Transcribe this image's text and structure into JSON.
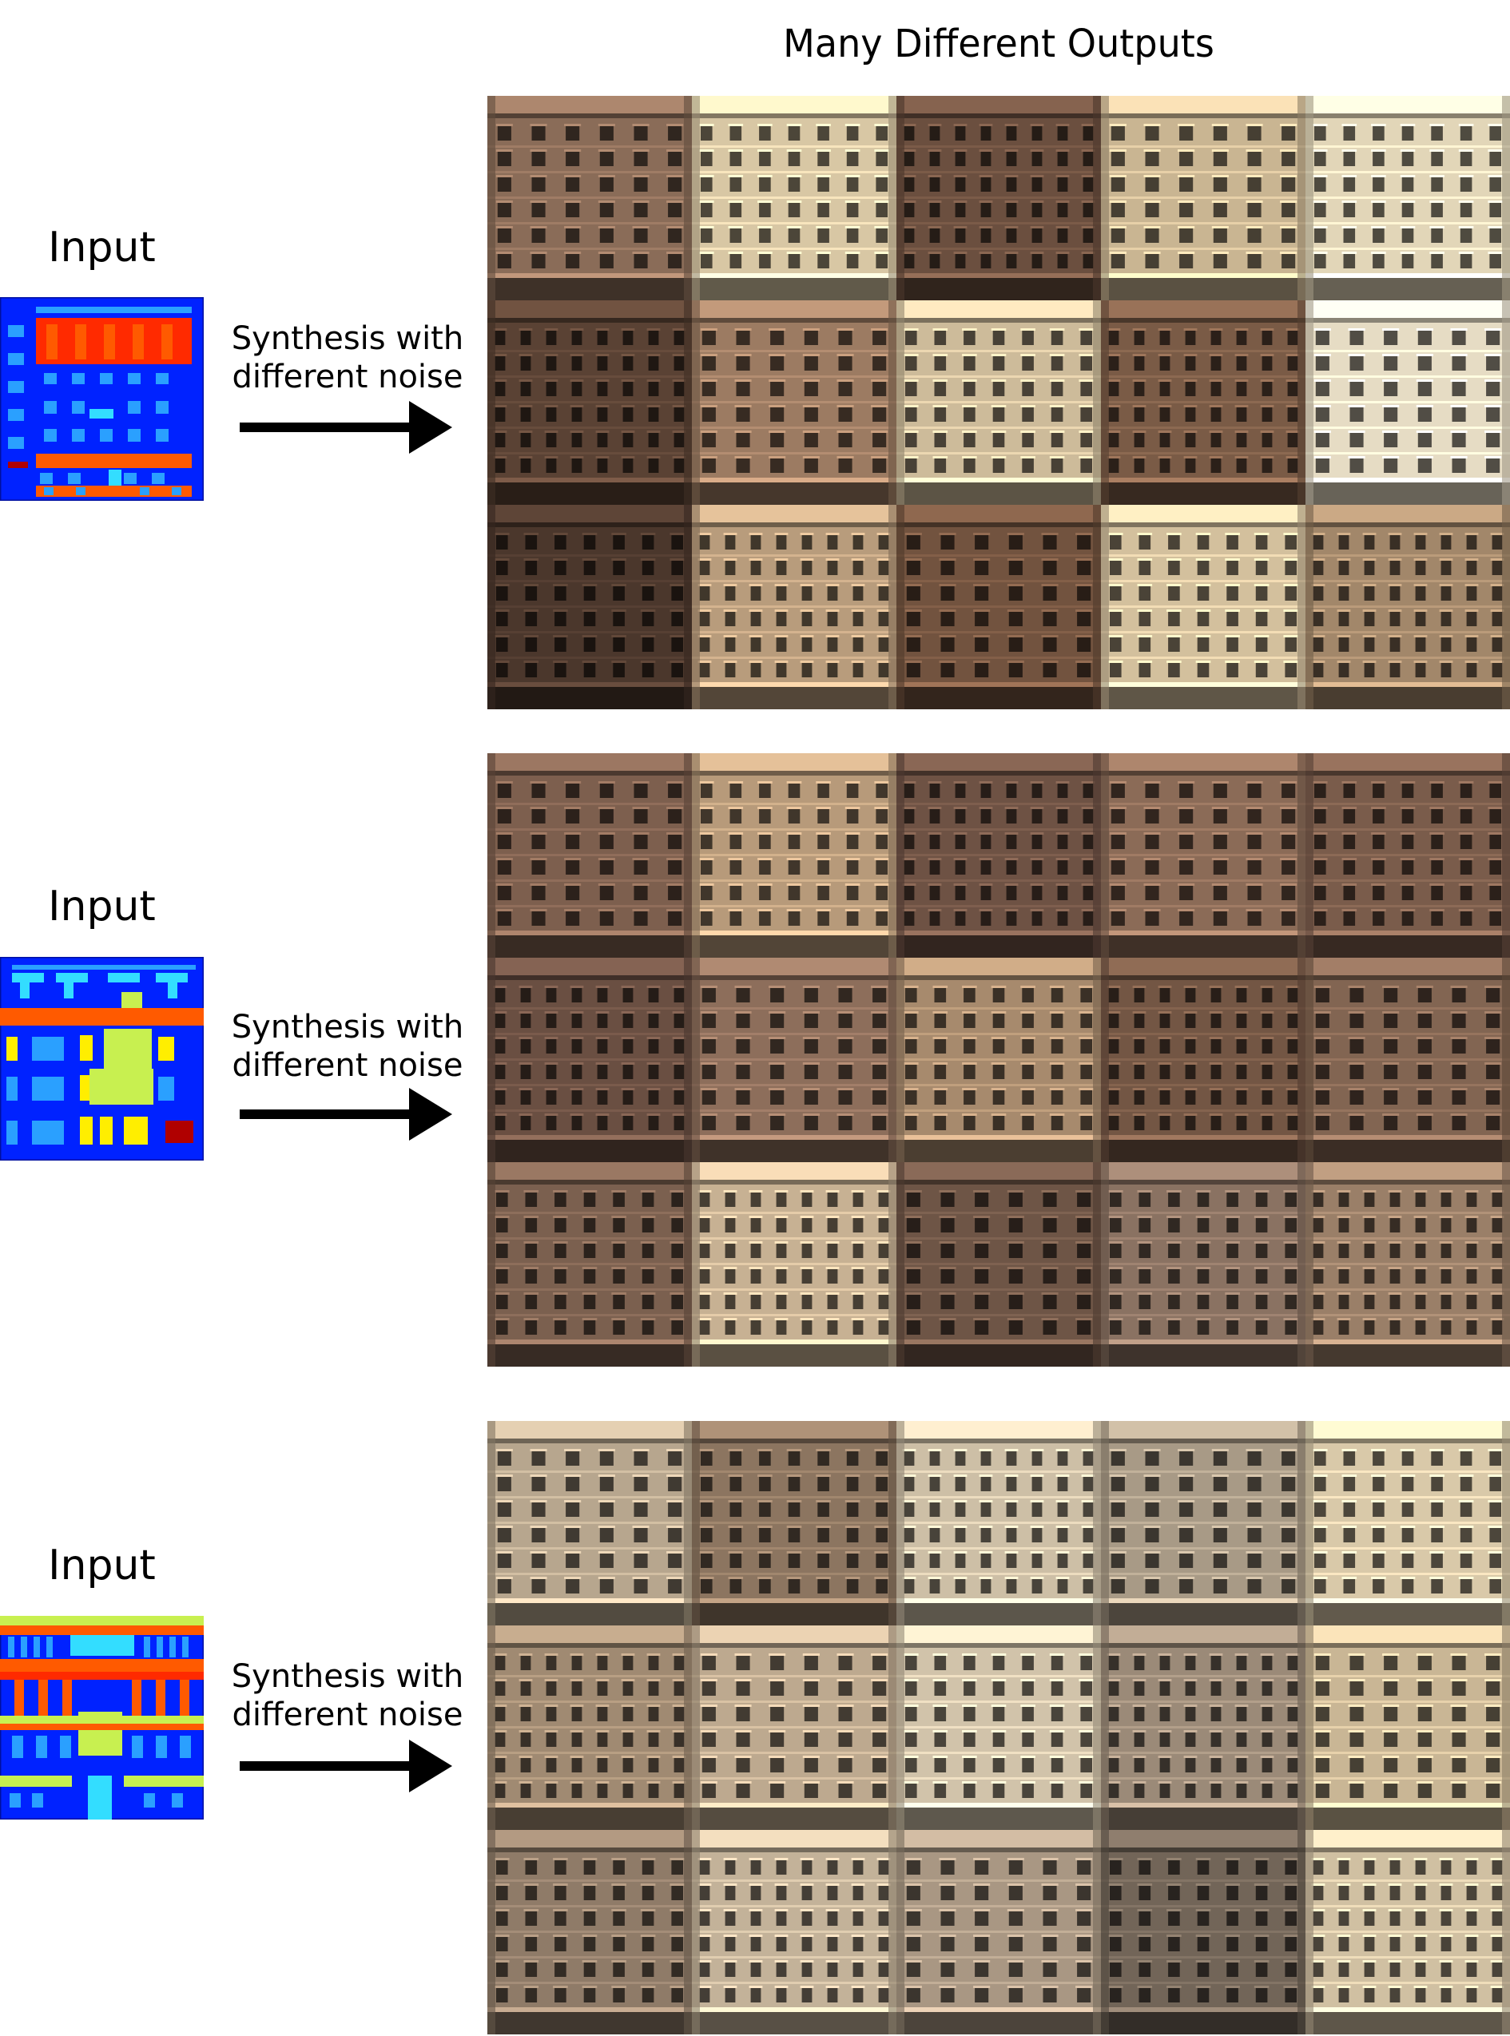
{
  "header": {
    "title": "Many Different Outputs"
  },
  "sections": [
    {
      "input_label": "Input",
      "caption_line1": "Synthesis with",
      "caption_line2": "different noise",
      "palette": [
        "#8a6c58",
        "#d8c7a4",
        "#6b4f3f",
        "#c9b592",
        "#e2d6b8",
        "#5a4234",
        "#9c7b62",
        "#cdbb9a",
        "#7a5b46",
        "#e6dcc4",
        "#4b372c",
        "#b89c7c",
        "#72533f",
        "#d3c09d",
        "#a2876a"
      ]
    },
    {
      "input_label": "Input",
      "caption_line1": "Synthesis with",
      "caption_line2": "different noise",
      "palette": [
        "#7d5f4e",
        "#b79a7a",
        "#6e5244",
        "#8b6b57",
        "#7a5c4b",
        "#6a4f42",
        "#8d6e5b",
        "#a78a6d",
        "#735644",
        "#826552",
        "#7b604f",
        "#c7b193",
        "#6e5546",
        "#8a7262",
        "#9a7f68"
      ]
    },
    {
      "input_label": "Input",
      "caption_line1": "Synthesis with",
      "caption_line2": "different noise",
      "palette": [
        "#b7a68e",
        "#8c7560",
        "#cdbfa6",
        "#a89a86",
        "#d9c9a9",
        "#a08a72",
        "#bda98f",
        "#d1c3aa",
        "#9b8a78",
        "#c9b695",
        "#8f7b68",
        "#c3b299",
        "#a99783",
        "#726558",
        "#d0c0a2"
      ]
    }
  ],
  "colors": {
    "label_blue": "#0022ff",
    "label_red": "#ff2a00",
    "label_orange": "#ff5a00",
    "label_light_blue": "#2aa0ff",
    "label_cyan": "#33ddff",
    "label_yellow": "#ffee00",
    "label_lime": "#c8f050",
    "label_dark_red": "#b00000"
  },
  "icons": {
    "arrow": "arrow-right-icon"
  }
}
